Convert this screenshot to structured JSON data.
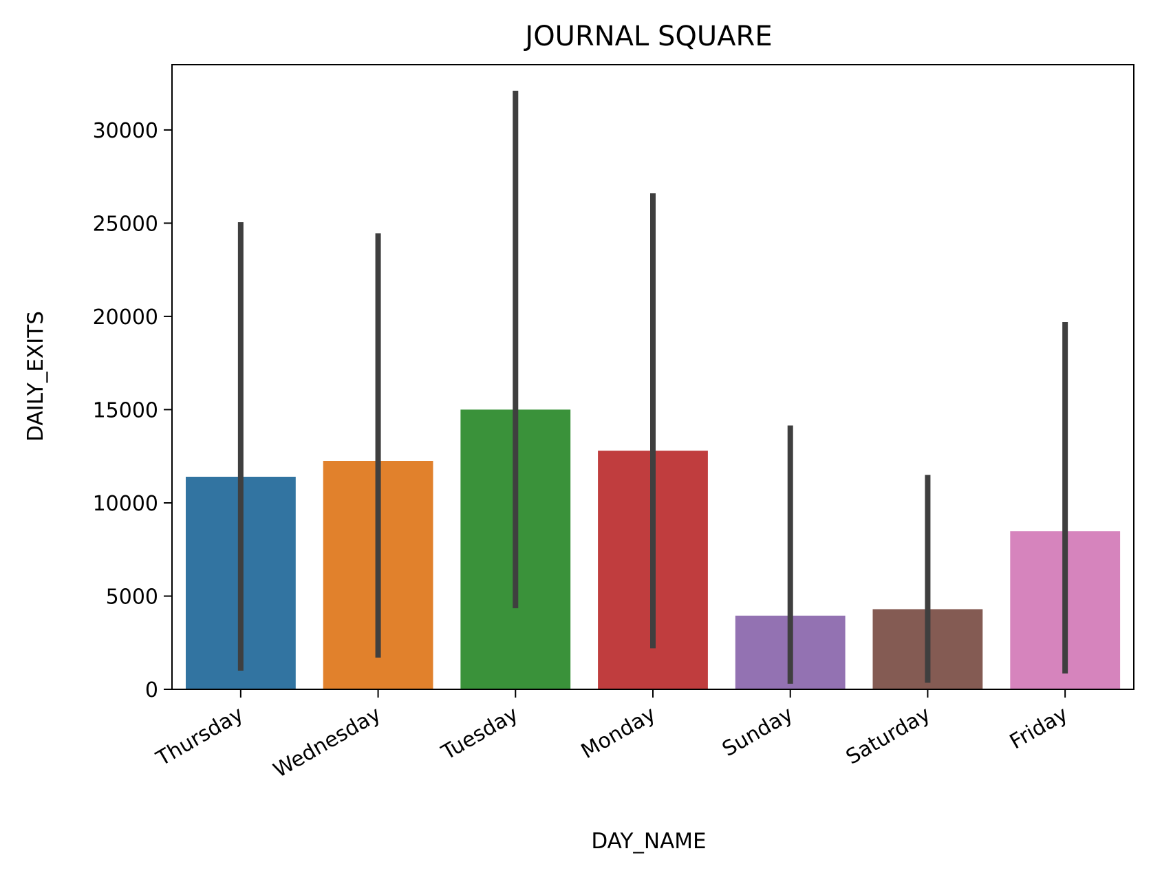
{
  "chart_data": {
    "type": "bar",
    "title": "JOURNAL SQUARE",
    "xlabel": "DAY_NAME",
    "ylabel": "DAILY_EXITS",
    "categories": [
      "Thursday",
      "Wednesday",
      "Tuesday",
      "Monday",
      "Sunday",
      "Saturday",
      "Friday"
    ],
    "values": [
      11400,
      12250,
      15000,
      12800,
      3950,
      4300,
      8480
    ],
    "error_bars": [
      [
        1000,
        25050
      ],
      [
        1700,
        24450
      ],
      [
        4350,
        32100
      ],
      [
        2200,
        26600
      ],
      [
        300,
        14150
      ],
      [
        350,
        11500
      ],
      [
        850,
        19700
      ]
    ],
    "colors": [
      "#3274a1",
      "#e1812c",
      "#3a923a",
      "#c03d3e",
      "#9372b2",
      "#845b53",
      "#d684bd"
    ],
    "errorbar_color": "#3f3f3f",
    "ylim": [
      0,
      33500
    ],
    "yticks": [
      0,
      5000,
      10000,
      15000,
      20000,
      25000,
      30000
    ],
    "ytick_labels": [
      "0",
      "5000",
      "10000",
      "15000",
      "20000",
      "25000",
      "30000"
    ],
    "grid": false,
    "legend": "none"
  }
}
